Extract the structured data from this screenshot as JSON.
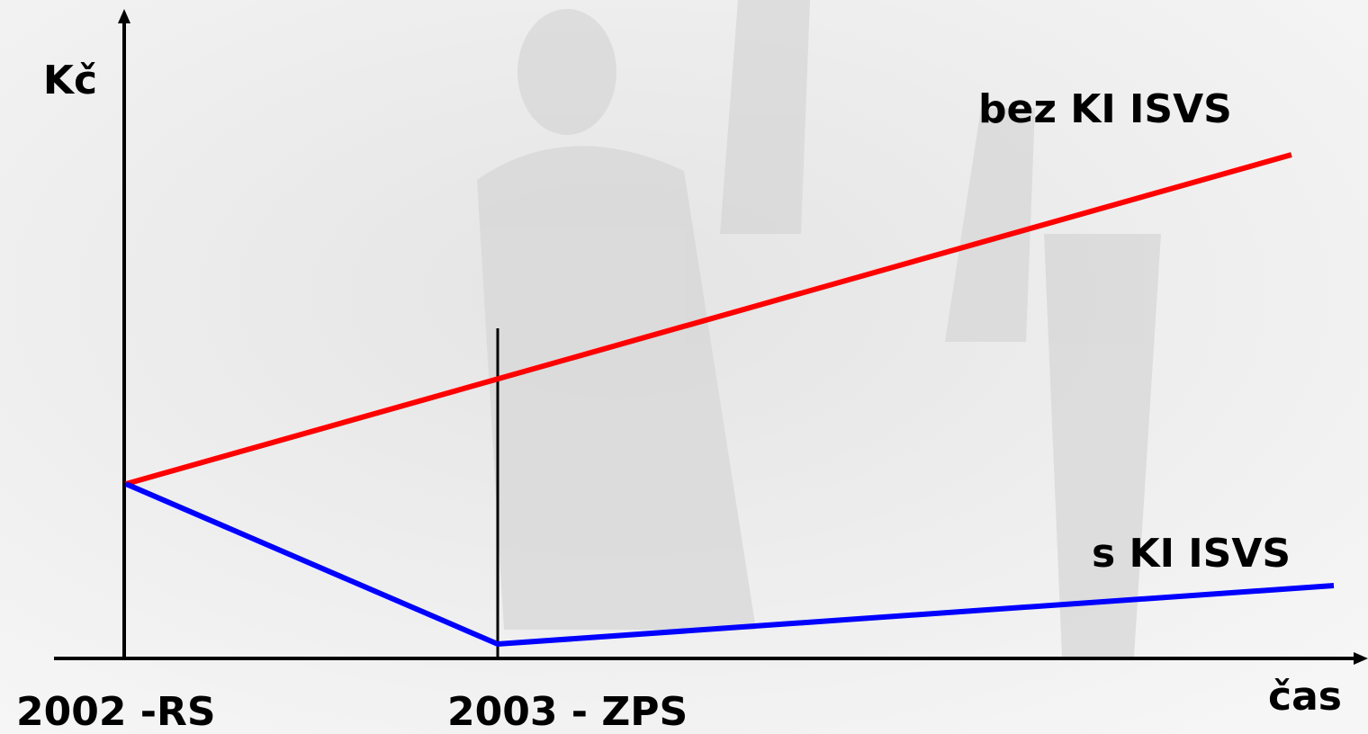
{
  "axes": {
    "y_label": "Kč",
    "x_label": "čas"
  },
  "milestones": [
    "2002 -RS",
    "2003 - ZPS"
  ],
  "lines": [
    {
      "label": "bez KI ISVS"
    },
    {
      "label": "s KI ISVS"
    }
  ]
}
